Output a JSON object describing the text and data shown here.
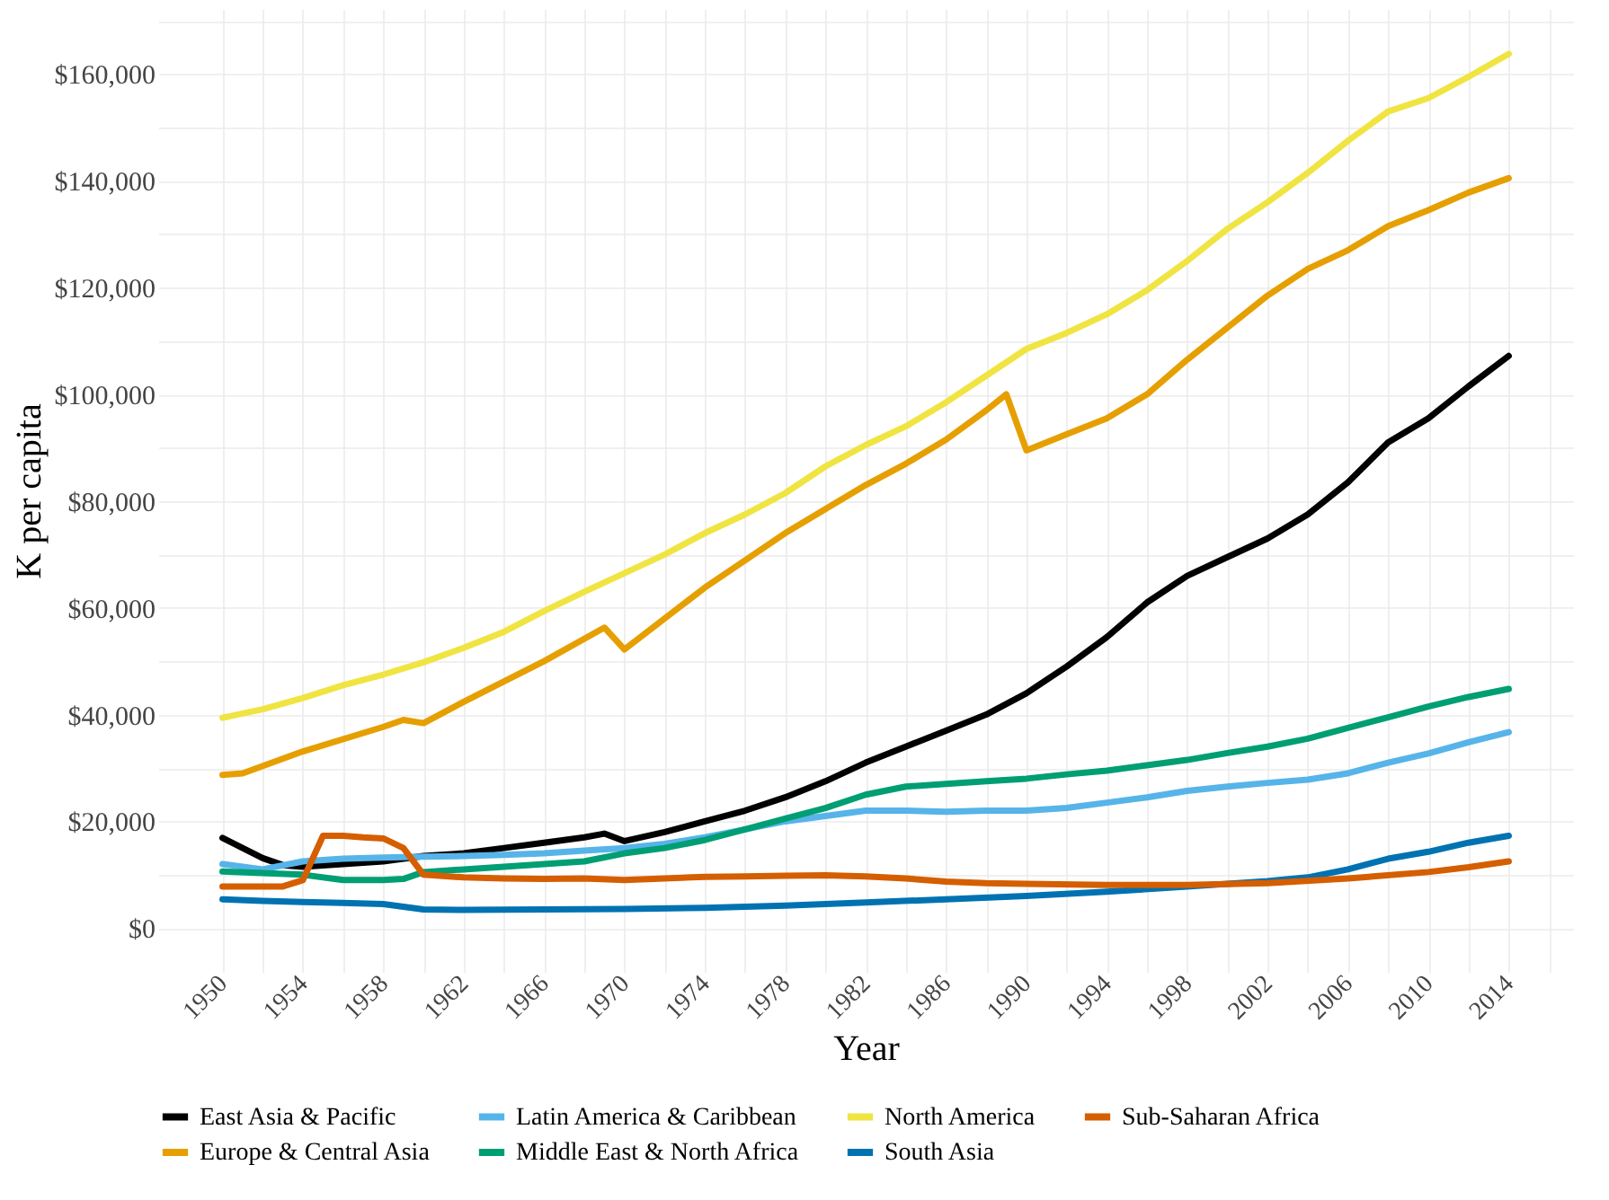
{
  "chart_data": {
    "type": "line",
    "xlabel": "Year",
    "ylabel": "K per capita",
    "grid": true,
    "legend": "bottom",
    "line_style": "solid",
    "marker": "none",
    "xlim": [
      1946.8,
      2017.2
    ],
    "ylim": [
      -8200,
      172200
    ],
    "xticks": [
      1950,
      {
        "value": 1952,
        "label": null
      },
      1954,
      {
        "value": 1956,
        "label": null
      },
      1958,
      {
        "value": 1960,
        "label": null
      },
      1962,
      {
        "value": 1964,
        "label": null
      },
      1966,
      {
        "value": 1968,
        "label": null
      },
      1970,
      {
        "value": 1972,
        "label": null
      },
      1974,
      {
        "value": 1976,
        "label": null
      },
      1978,
      {
        "value": 1980,
        "label": null
      },
      1982,
      {
        "value": 1984,
        "label": null
      },
      1986,
      {
        "value": 1988,
        "label": null
      },
      1990,
      {
        "value": 1992,
        "label": null
      },
      1994,
      {
        "value": 1996,
        "label": null
      },
      1998,
      {
        "value": 2000,
        "label": null
      },
      2002,
      {
        "value": 2004,
        "label": null
      },
      2006,
      {
        "value": 2008,
        "label": null
      },
      2010,
      {
        "value": 2012,
        "label": null
      },
      2014,
      {
        "value": 2016,
        "label": null
      }
    ],
    "yticks": [
      {
        "value": 0,
        "label": "$0"
      },
      {
        "value": 10000,
        "label": null
      },
      {
        "value": 20000,
        "label": "$20,000"
      },
      {
        "value": 30000,
        "label": null
      },
      {
        "value": 40000,
        "label": "$40,000"
      },
      {
        "value": 50000,
        "label": null
      },
      {
        "value": 60000,
        "label": "$60,000"
      },
      {
        "value": 70000,
        "label": null
      },
      {
        "value": 80000,
        "label": "$80,000"
      },
      {
        "value": 90000,
        "label": null
      },
      {
        "value": 100000,
        "label": "$100,000"
      },
      {
        "value": 110000,
        "label": null
      },
      {
        "value": 120000,
        "label": "$120,000"
      },
      {
        "value": 130000,
        "label": null
      },
      {
        "value": 140000,
        "label": "$140,000"
      },
      {
        "value": 150000,
        "label": null
      },
      {
        "value": 160000,
        "label": "$160,000"
      },
      {
        "value": 170000,
        "label": null
      }
    ],
    "series": [
      {
        "name": "East Asia & Pacific",
        "color": "#000000",
        "x": [
          1950,
          1952,
          1953,
          1954,
          1956,
          1958,
          1960,
          1962,
          1964,
          1966,
          1968,
          1969,
          1970,
          1972,
          1974,
          1976,
          1978,
          1980,
          1982,
          1984,
          1986,
          1988,
          1990,
          1992,
          1994,
          1996,
          1998,
          2000,
          2002,
          2004,
          2006,
          2008,
          2010,
          2012,
          2014
        ],
        "values": [
          16900,
          13100,
          11800,
          11500,
          12000,
          12500,
          13500,
          14000,
          15000,
          16000,
          17000,
          17700,
          16300,
          18000,
          20000,
          22000,
          24500,
          27500,
          31000,
          34000,
          37000,
          40000,
          44000,
          49000,
          54500,
          61000,
          66000,
          69500,
          73000,
          77500,
          83500,
          91000,
          95500,
          101500,
          107200
        ]
      },
      {
        "name": "Europe & Central Asia",
        "color": "#E69F00",
        "x": [
          1950,
          1951,
          1954,
          1958,
          1959,
          1960,
          1962,
          1966,
          1969,
          1970,
          1974,
          1978,
          1980,
          1982,
          1984,
          1986,
          1988,
          1989,
          1990,
          1992,
          1994,
          1996,
          1998,
          2000,
          2002,
          2004,
          2006,
          2008,
          2010,
          2012,
          2014
        ],
        "values": [
          28700,
          29000,
          33100,
          37700,
          39000,
          38400,
          42400,
          50000,
          56300,
          52200,
          63800,
          74000,
          78500,
          83000,
          87000,
          91500,
          97000,
          100000,
          89500,
          92500,
          95500,
          100000,
          106500,
          112500,
          118500,
          123500,
          127000,
          131500,
          134500,
          137800,
          140500
        ]
      },
      {
        "name": "Latin America & Caribbean",
        "color": "#56B4E9",
        "x": [
          1950,
          1952,
          1954,
          1956,
          1958,
          1960,
          1962,
          1964,
          1966,
          1968,
          1970,
          1972,
          1974,
          1976,
          1978,
          1980,
          1982,
          1984,
          1986,
          1988,
          1990,
          1992,
          1994,
          1996,
          1998,
          2000,
          2002,
          2004,
          2006,
          2008,
          2010,
          2012,
          2014
        ],
        "values": [
          12000,
          11000,
          12500,
          13000,
          13200,
          13400,
          13500,
          13700,
          14000,
          14500,
          15000,
          15800,
          17000,
          18500,
          20000,
          21000,
          22000,
          22000,
          21800,
          22000,
          22000,
          22500,
          23500,
          24500,
          25700,
          26500,
          27200,
          27800,
          29000,
          31000,
          32700,
          34800,
          36700
        ]
      },
      {
        "name": "Middle East & North Africa",
        "color": "#009E73",
        "x": [
          1950,
          1952,
          1954,
          1956,
          1958,
          1959,
          1960,
          1962,
          1964,
          1966,
          1968,
          1970,
          1972,
          1974,
          1976,
          1978,
          1980,
          1982,
          1984,
          1986,
          1988,
          1990,
          1992,
          1994,
          1996,
          1998,
          2000,
          2002,
          2004,
          2006,
          2008,
          2010,
          2012,
          2014
        ],
        "values": [
          10600,
          10300,
          10000,
          9000,
          9000,
          9200,
          10500,
          11000,
          11500,
          12000,
          12500,
          14000,
          15000,
          16500,
          18500,
          20500,
          22500,
          25000,
          26500,
          27000,
          27500,
          28000,
          28800,
          29500,
          30500,
          31500,
          32800,
          34000,
          35500,
          37500,
          39500,
          41500,
          43300,
          44800
        ]
      },
      {
        "name": "North America",
        "color": "#F0E442",
        "x": [
          1950,
          1952,
          1954,
          1956,
          1958,
          1960,
          1962,
          1964,
          1966,
          1968,
          1970,
          1972,
          1974,
          1976,
          1978,
          1980,
          1982,
          1984,
          1986,
          1988,
          1990,
          1992,
          1994,
          1996,
          1998,
          2000,
          2002,
          2004,
          2006,
          2008,
          2010,
          2012,
          2014
        ],
        "values": [
          39400,
          41000,
          43100,
          45500,
          47500,
          49800,
          52500,
          55500,
          59400,
          63000,
          66500,
          70000,
          74000,
          77500,
          81500,
          86500,
          90500,
          94000,
          98500,
          103500,
          108500,
          111500,
          115000,
          119500,
          125000,
          131000,
          136000,
          141500,
          147500,
          153000,
          155500,
          159500,
          163800
        ]
      },
      {
        "name": "South Asia",
        "color": "#0072B2",
        "x": [
          1950,
          1952,
          1954,
          1956,
          1958,
          1960,
          1962,
          1966,
          1970,
          1974,
          1978,
          1982,
          1986,
          1990,
          1994,
          1998,
          2002,
          2004,
          2006,
          2008,
          2010,
          2012,
          2014
        ],
        "values": [
          5400,
          5100,
          4900,
          4700,
          4500,
          3500,
          3400,
          3500,
          3600,
          3800,
          4200,
          4800,
          5400,
          6000,
          6800,
          7800,
          8800,
          9500,
          11000,
          13000,
          14300,
          16000,
          17300
        ]
      },
      {
        "name": "Sub-Saharan Africa",
        "color": "#D55E00",
        "x": [
          1950,
          1952,
          1953,
          1954,
          1955,
          1956,
          1957,
          1958,
          1959,
          1960,
          1962,
          1964,
          1966,
          1968,
          1970,
          1972,
          1974,
          1976,
          1978,
          1980,
          1982,
          1984,
          1986,
          1988,
          1990,
          1994,
          1998,
          2002,
          2006,
          2010,
          2012,
          2014
        ],
        "values": [
          7800,
          7800,
          7800,
          9000,
          17300,
          17300,
          17000,
          16800,
          15000,
          10000,
          9500,
          9300,
          9200,
          9300,
          9000,
          9300,
          9600,
          9700,
          9800,
          9900,
          9700,
          9300,
          8700,
          8400,
          8300,
          8100,
          8100,
          8400,
          9300,
          10500,
          11400,
          12500
        ]
      }
    ]
  }
}
